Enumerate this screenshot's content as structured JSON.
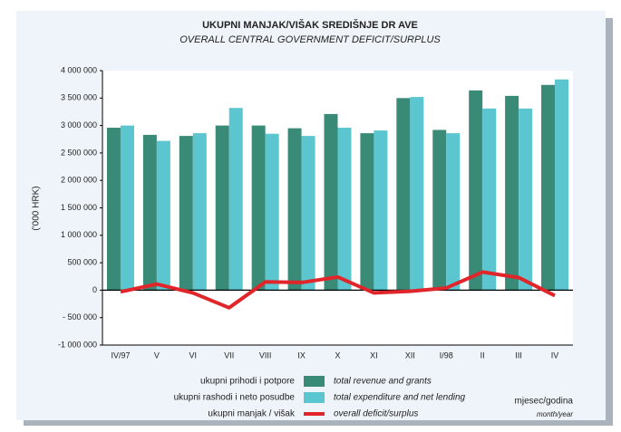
{
  "chart_data": {
    "type": "bar_line",
    "title": "UKUPNI MANJAK/VIŠAK SREDIŠNJE DR  AVE",
    "subtitle": "OVERALL CENTRAL GOVERNMENT DEFICIT/SURPLUS",
    "y_label": "('000 HRK)",
    "x_label": "mjesec/godina",
    "x_label_en": "month/year",
    "categories": [
      "IV/97",
      "V",
      "VI",
      "VII",
      "VIII",
      "IX",
      "X",
      "XI",
      "XII",
      "I/98",
      "II",
      "III",
      "IV"
    ],
    "series": [
      {
        "name": "total revenue and grants",
        "name_hr": "ukupni prihodi i potpore",
        "kind": "bar",
        "color": "#3a8a78",
        "values": [
          2960000,
          2830000,
          2810000,
          3000000,
          3000000,
          2950000,
          3210000,
          2860000,
          3500000,
          2920000,
          3640000,
          3540000,
          3740000
        ]
      },
      {
        "name": "total expenditure and net lending",
        "name_hr": "ukupni rashodi i neto posudbe",
        "kind": "bar",
        "color": "#5bc6d0",
        "values": [
          3000000,
          2720000,
          2860000,
          3320000,
          2850000,
          2810000,
          2960000,
          2910000,
          3520000,
          2860000,
          3310000,
          3310000,
          3840000
        ]
      },
      {
        "name": "overall deficit/surplus",
        "name_hr": "ukupni manjak / višak",
        "kind": "line",
        "color": "#e0262a",
        "values": [
          -30000,
          110000,
          -50000,
          -320000,
          150000,
          140000,
          240000,
          -50000,
          -20000,
          40000,
          330000,
          230000,
          -100000
        ]
      }
    ],
    "ylim": [
      -1000000,
      4000000
    ],
    "yticks": [
      {
        "value": -1000000,
        "label": "-1 000 000"
      },
      {
        "value": -500000,
        "label": "- 500 000"
      },
      0,
      {
        "value": 500000,
        "label": "500 000"
      },
      {
        "value": 1000000,
        "label": "1 000 000"
      },
      {
        "value": 1500000,
        "label": "1 500 000"
      },
      {
        "value": 2000000,
        "label": "2 000 000"
      },
      {
        "value": 2500000,
        "label": "2 500 000"
      },
      {
        "value": 3000000,
        "label": "3 000 000"
      },
      {
        "value": 3500000,
        "label": "3 500 000"
      },
      {
        "value": 4000000,
        "label": "4 000 000"
      }
    ]
  }
}
